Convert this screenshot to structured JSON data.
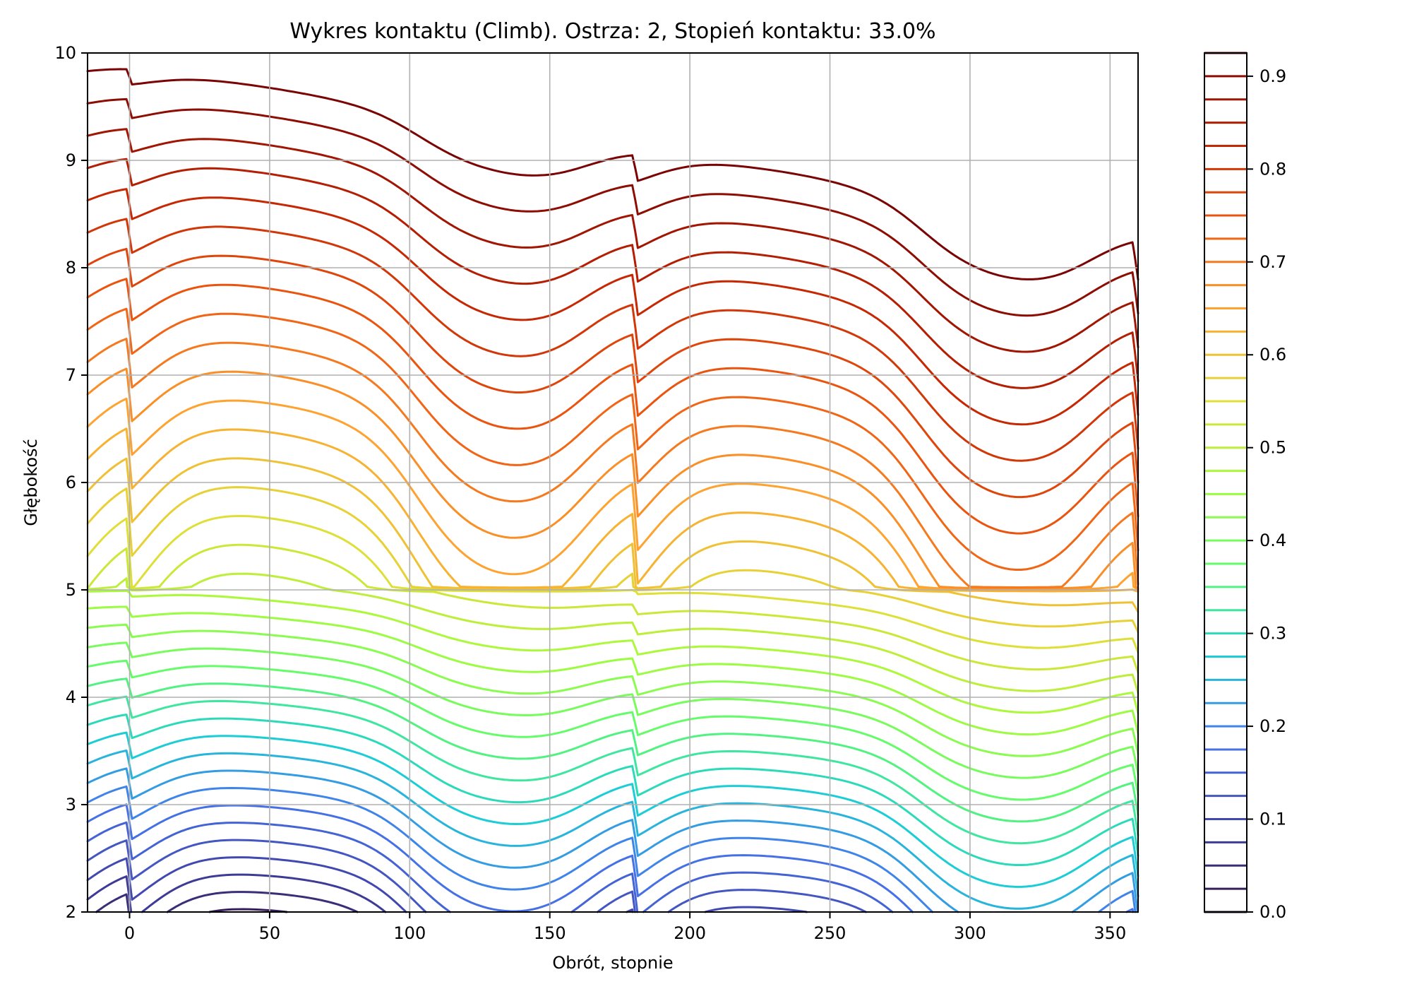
{
  "chart_data": {
    "type": "contour",
    "title": "Wykres kontaktu (Climb). Ostrza: 2, Stopień kontaktu: 33.0%",
    "xlabel": "Obrót, stopnie",
    "ylabel": "Głębokość",
    "xlim": [
      -15,
      360
    ],
    "ylim": [
      2,
      10
    ],
    "xticks": [
      "0",
      "50",
      "100",
      "150",
      "200",
      "250",
      "300",
      "350"
    ],
    "yticks": [
      "2",
      "3",
      "4",
      "5",
      "6",
      "7",
      "8",
      "9",
      "10"
    ],
    "grid": true,
    "colorbar": {
      "range": [
        0,
        0.925
      ],
      "ticks": [
        "0.0",
        "0.1",
        "0.2",
        "0.3",
        "0.4",
        "0.5",
        "0.6",
        "0.7",
        "0.8",
        "0.9"
      ],
      "levels": [
        0.0,
        0.025,
        0.05,
        0.075,
        0.1,
        0.125,
        0.15,
        0.175,
        0.2,
        0.225,
        0.25,
        0.275,
        0.3,
        0.325,
        0.35,
        0.375,
        0.4,
        0.425,
        0.45,
        0.475,
        0.5,
        0.525,
        0.55,
        0.575,
        0.6,
        0.625,
        0.65,
        0.675,
        0.7,
        0.725,
        0.75,
        0.775,
        0.8,
        0.825,
        0.85,
        0.875,
        0.9,
        0.925
      ],
      "colormap": "turbo"
    },
    "field": {
      "description_of_values": "contact level by rotation (deg) and depth",
      "period_deg": 180,
      "upper_band_depth": [
        5,
        10
      ],
      "lower_band_depth": [
        2,
        5
      ]
    }
  }
}
